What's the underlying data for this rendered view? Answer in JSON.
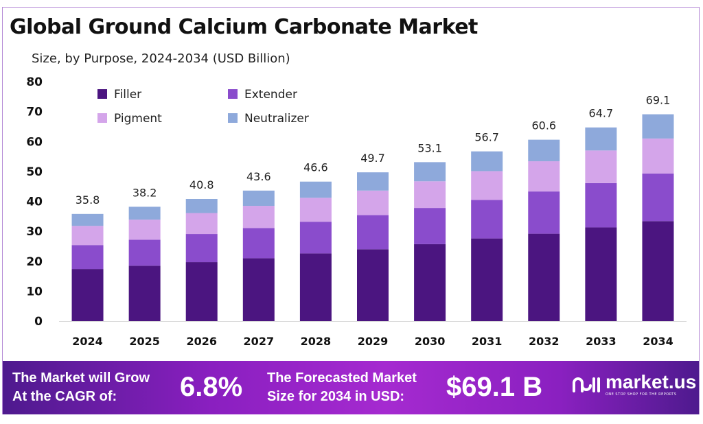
{
  "title": "Global Ground Calcium Carbonate Market",
  "subtitle": "Size, by Purpose, 2024-2034 (USD Billion)",
  "chart_data": {
    "type": "bar",
    "stacked": true,
    "categories": [
      "2024",
      "2025",
      "2026",
      "2027",
      "2028",
      "2029",
      "2030",
      "2031",
      "2032",
      "2033",
      "2034"
    ],
    "series": [
      {
        "name": "Filler",
        "color": "#4b1580",
        "values": [
          17.4,
          18.5,
          19.7,
          21.0,
          22.6,
          24.0,
          25.7,
          27.6,
          29.2,
          31.3,
          33.4
        ]
      },
      {
        "name": "Extender",
        "color": "#8a4ccc",
        "values": [
          8.0,
          8.7,
          9.4,
          10.1,
          10.6,
          11.4,
          12.1,
          12.9,
          14.1,
          14.8,
          15.9
        ]
      },
      {
        "name": "Pigment",
        "color": "#d4a5ea",
        "values": [
          6.4,
          6.7,
          7.0,
          7.4,
          8.0,
          8.2,
          8.9,
          9.6,
          10.1,
          10.9,
          11.7
        ]
      },
      {
        "name": "Neutralizer",
        "color": "#8ea9db",
        "values": [
          4.0,
          4.3,
          4.7,
          5.1,
          5.4,
          6.1,
          6.4,
          6.6,
          7.2,
          7.7,
          8.1
        ]
      }
    ],
    "totals": [
      "35.8",
      "38.2",
      "40.8",
      "43.6",
      "46.6",
      "49.7",
      "53.1",
      "56.7",
      "60.6",
      "64.7",
      "69.1"
    ],
    "yticks": [
      "0",
      "10",
      "20",
      "30",
      "40",
      "50",
      "60",
      "70",
      "80"
    ],
    "ylim": [
      0,
      80
    ],
    "grid": false,
    "legend": "top-left",
    "xlabel": "",
    "ylabel": ""
  },
  "banner": {
    "cagr_label_1": "The Market will Grow",
    "cagr_label_2": "At the CAGR of:",
    "cagr_value": "6.8%",
    "forecast_label_1": "The Forecasted Market",
    "forecast_label_2": "Size for 2034 in USD:",
    "forecast_value": "$69.1 B",
    "logo_name": "market.us",
    "logo_tagline": "ONE STOP SHOP FOR THE REPORTS"
  }
}
